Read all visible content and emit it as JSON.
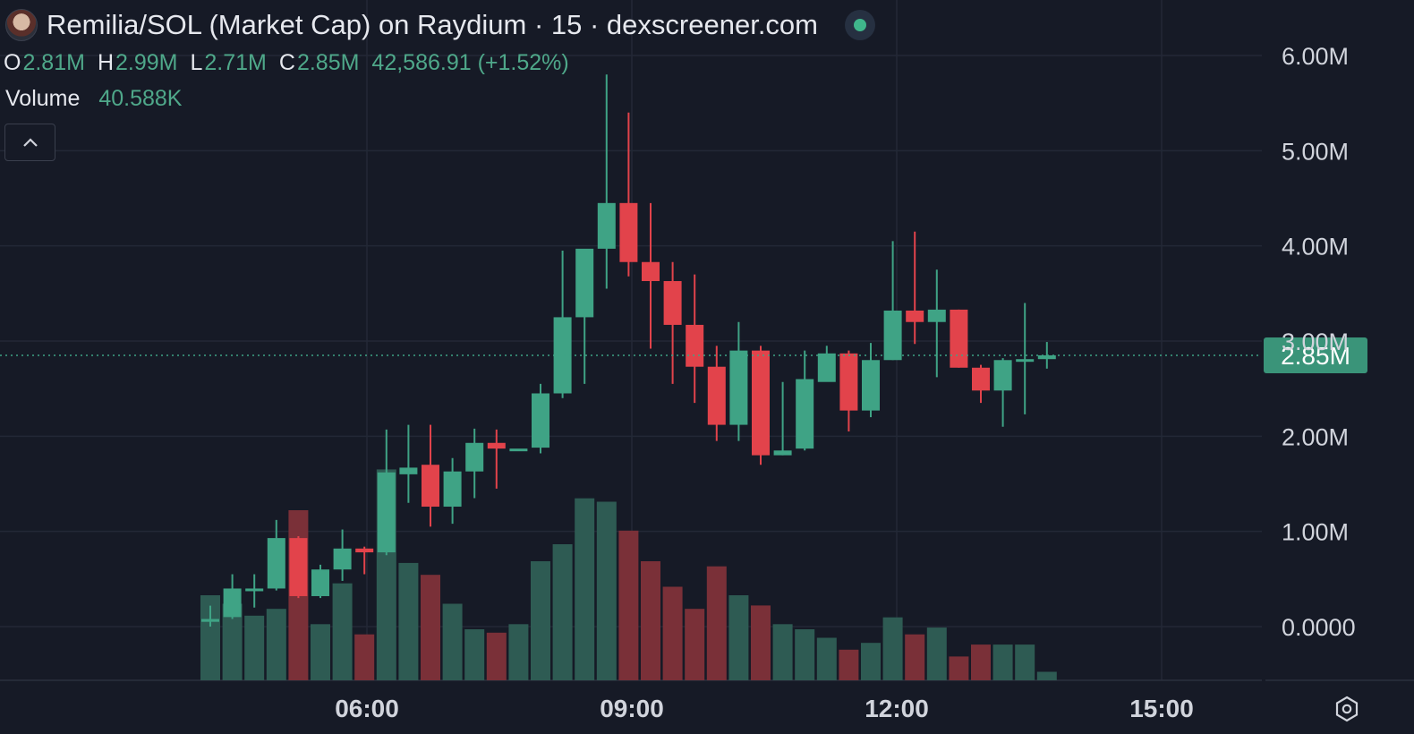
{
  "header": {
    "title": "Remilia/SOL (Market Cap) on Raydium · 15 · dexscreener.com"
  },
  "ohlc": {
    "o_label": "O",
    "o_value": "2.81M",
    "h_label": "H",
    "h_value": "2.99M",
    "l_label": "L",
    "l_value": "2.71M",
    "c_label": "C",
    "c_value": "2.85M",
    "change": "42,586.91 (+1.52%)"
  },
  "volume": {
    "label": "Volume",
    "value": "40.588K"
  },
  "icons": {
    "collapse": "chevron-up-icon",
    "settings": "hexagon-gear-icon",
    "live": "live-status-dot-icon"
  },
  "colors": {
    "up": "#3fa385",
    "down": "#e2434b",
    "vol_up": "#2e5b53",
    "vol_down": "#7a3038",
    "background": "#161a26",
    "grid": "#232836",
    "price_tag": "#3a9479"
  },
  "chart_data": {
    "type": "candlestick",
    "y_axis": {
      "min": 0,
      "max": 6000000,
      "ticks": [
        "6.00M",
        "5.00M",
        "4.00M",
        "3.00M",
        "2.00M",
        "1.00M",
        "0.0000"
      ]
    },
    "x_axis": {
      "ticks": [
        "06:00",
        "09:00",
        "12:00",
        "15:00"
      ]
    },
    "last_price": {
      "value": 2850000,
      "label": "2.85M"
    },
    "candles": [
      {
        "time": "04:45",
        "o": 0.05,
        "h": 0.22,
        "l": 0.0,
        "c": 0.08,
        "v": 0.5
      },
      {
        "time": "05:00",
        "o": 0.1,
        "h": 0.55,
        "l": 0.08,
        "c": 0.4,
        "v": 0.45
      },
      {
        "time": "05:15",
        "o": 0.4,
        "h": 0.55,
        "l": 0.2,
        "c": 0.4,
        "v": 0.38
      },
      {
        "time": "05:30",
        "o": 0.4,
        "h": 1.12,
        "l": 0.38,
        "c": 0.93,
        "v": 0.42
      },
      {
        "time": "05:45",
        "o": 0.93,
        "h": 0.95,
        "l": 0.3,
        "c": 0.32,
        "v": 1.0
      },
      {
        "time": "06:00",
        "o": 0.32,
        "h": 0.65,
        "l": 0.3,
        "c": 0.6,
        "v": 0.33
      },
      {
        "time": "06:15",
        "o": 0.6,
        "h": 1.02,
        "l": 0.48,
        "c": 0.82,
        "v": 0.57
      },
      {
        "time": "06:30",
        "o": 0.82,
        "h": 0.84,
        "l": 0.55,
        "c": 0.78,
        "v": 0.27
      },
      {
        "time": "06:45",
        "o": 0.78,
        "h": 2.07,
        "l": 0.75,
        "c": 1.62,
        "v": 1.24
      },
      {
        "time": "07:00",
        "o": 1.6,
        "h": 2.12,
        "l": 1.3,
        "c": 1.67,
        "v": 0.69
      },
      {
        "time": "07:15",
        "o": 1.7,
        "h": 2.12,
        "l": 1.05,
        "c": 1.26,
        "v": 0.62
      },
      {
        "time": "07:30",
        "o": 1.26,
        "h": 1.77,
        "l": 1.08,
        "c": 1.63,
        "v": 0.45
      },
      {
        "time": "07:45",
        "o": 1.63,
        "h": 2.08,
        "l": 1.35,
        "c": 1.93,
        "v": 0.3
      },
      {
        "time": "08:00",
        "o": 1.93,
        "h": 2.07,
        "l": 1.45,
        "c": 1.87,
        "v": 0.28
      },
      {
        "time": "08:15",
        "o": 1.87,
        "h": 1.87,
        "l": 1.87,
        "c": 1.87,
        "v": 0.33
      },
      {
        "time": "08:30",
        "o": 1.88,
        "h": 2.55,
        "l": 1.82,
        "c": 2.45,
        "v": 0.7
      },
      {
        "time": "08:45",
        "o": 2.45,
        "h": 3.95,
        "l": 2.4,
        "c": 3.25,
        "v": 0.8
      },
      {
        "time": "09:00",
        "o": 3.25,
        "h": 3.95,
        "l": 2.55,
        "c": 3.97,
        "v": 1.07
      },
      {
        "time": "09:15",
        "o": 3.97,
        "h": 5.8,
        "l": 3.55,
        "c": 4.45,
        "v": 1.05
      },
      {
        "time": "09:30",
        "o": 4.45,
        "h": 5.4,
        "l": 3.68,
        "c": 3.83,
        "v": 0.88
      },
      {
        "time": "09:45",
        "o": 3.83,
        "h": 4.45,
        "l": 2.92,
        "c": 3.63,
        "v": 0.7
      },
      {
        "time": "10:00",
        "o": 3.63,
        "h": 3.83,
        "l": 2.55,
        "c": 3.17,
        "v": 0.55
      },
      {
        "time": "10:15",
        "o": 3.17,
        "h": 3.7,
        "l": 2.35,
        "c": 2.73,
        "v": 0.42
      },
      {
        "time": "10:30",
        "o": 2.73,
        "h": 2.95,
        "l": 1.95,
        "c": 2.12,
        "v": 0.67
      },
      {
        "time": "10:45",
        "o": 2.12,
        "h": 3.2,
        "l": 1.95,
        "c": 2.9,
        "v": 0.5
      },
      {
        "time": "11:00",
        "o": 2.9,
        "h": 2.95,
        "l": 1.7,
        "c": 1.8,
        "v": 0.44
      },
      {
        "time": "11:15",
        "o": 1.8,
        "h": 2.57,
        "l": 1.8,
        "c": 1.85,
        "v": 0.33
      },
      {
        "time": "11:30",
        "o": 1.87,
        "h": 2.9,
        "l": 1.85,
        "c": 2.6,
        "v": 0.3
      },
      {
        "time": "11:45",
        "o": 2.57,
        "h": 2.95,
        "l": 2.58,
        "c": 2.87,
        "v": 0.25
      },
      {
        "time": "12:00",
        "o": 2.87,
        "h": 2.9,
        "l": 2.05,
        "c": 2.27,
        "v": 0.18
      },
      {
        "time": "12:15",
        "o": 2.27,
        "h": 2.98,
        "l": 2.2,
        "c": 2.8,
        "v": 0.22
      },
      {
        "time": "12:30",
        "o": 2.8,
        "h": 4.05,
        "l": 2.8,
        "c": 3.32,
        "v": 0.37
      },
      {
        "time": "12:45",
        "o": 3.32,
        "h": 4.15,
        "l": 2.97,
        "c": 3.2,
        "v": 0.27
      },
      {
        "time": "13:00",
        "o": 3.2,
        "h": 3.75,
        "l": 2.62,
        "c": 3.33,
        "v": 0.31
      },
      {
        "time": "13:15",
        "o": 3.33,
        "h": 3.33,
        "l": 2.72,
        "c": 2.72,
        "v": 0.14
      },
      {
        "time": "13:30",
        "o": 2.72,
        "h": 2.75,
        "l": 2.35,
        "c": 2.48,
        "v": 0.21
      },
      {
        "time": "13:45",
        "o": 2.48,
        "h": 2.82,
        "l": 2.1,
        "c": 2.8,
        "v": 0.21
      },
      {
        "time": "14:00",
        "o": 2.8,
        "h": 3.4,
        "l": 2.23,
        "c": 2.81,
        "v": 0.21
      },
      {
        "time": "14:15",
        "o": 2.81,
        "h": 2.99,
        "l": 2.71,
        "c": 2.85,
        "v": 0.05
      }
    ]
  }
}
